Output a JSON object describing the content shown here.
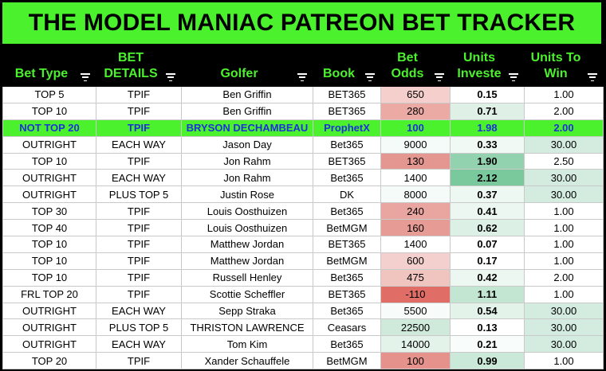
{
  "title": "THE MODEL MANIAC PATREON BET TRACKER",
  "colors": {
    "title_bg": "#4cf12e",
    "header_text": "#4cf12e",
    "highlight_row": "#4cf12e",
    "highlight_text": "#1c32d8"
  },
  "columns": [
    {
      "line1": "",
      "line2": "Bet Type"
    },
    {
      "line1": "BET",
      "line2": "DETAILS"
    },
    {
      "line1": "",
      "line2": "Golfer"
    },
    {
      "line1": "",
      "line2": "Book"
    },
    {
      "line1": "Bet",
      "line2": "Odds"
    },
    {
      "line1": "Units",
      "line2": "Investe"
    },
    {
      "line1": "Units To",
      "line2": "Win"
    }
  ],
  "rows": [
    {
      "bet_type": "TOP 5",
      "details": "TPIF",
      "golfer": "Ben Griffin",
      "book": "BET365",
      "odds": "650",
      "units": "0.15",
      "to_win": "1.00",
      "odds_bg": "#f4cfcc",
      "units_bg": "#ffffff",
      "win_bg": "#ffffff"
    },
    {
      "bet_type": "TOP 10",
      "details": "TPIF",
      "golfer": "Ben Griffin",
      "book": "BET365",
      "odds": "280",
      "units": "0.71",
      "to_win": "2.00",
      "odds_bg": "#ebaaa4",
      "units_bg": "#dff1e7",
      "win_bg": "#ffffff"
    },
    {
      "bet_type": "NOT TOP 20",
      "details": "TPIF",
      "golfer": "BRYSON DECHAMBEAU",
      "book": "ProphetX",
      "odds": "100",
      "units": "1.98",
      "to_win": "2.00",
      "odds_bg": "#e4928b",
      "units_bg": "#8fd0ac",
      "win_bg": "#ffffff",
      "highlight": true
    },
    {
      "bet_type": "OUTRIGHT",
      "details": "EACH WAY",
      "golfer": "Jason Day",
      "book": "Bet365",
      "odds": "9000",
      "units": "0.33",
      "to_win": "30.00",
      "odds_bg": "#f5fbf8",
      "units_bg": "#f1f9f4",
      "win_bg": "#d4ecdf"
    },
    {
      "bet_type": "TOP 10",
      "details": "TPIF",
      "golfer": "Jon Rahm",
      "book": "BET365",
      "odds": "130",
      "units": "1.90",
      "to_win": "2.50",
      "odds_bg": "#e39790",
      "units_bg": "#93d2af",
      "win_bg": "#ffffff"
    },
    {
      "bet_type": "OUTRIGHT",
      "details": "EACH WAY",
      "golfer": "Jon Rahm",
      "book": "Bet365",
      "odds": "1400",
      "units": "2.12",
      "to_win": "30.00",
      "odds_bg": "#ffffff",
      "units_bg": "#7ac99d",
      "win_bg": "#d4ecdf"
    },
    {
      "bet_type": "OUTRIGHT",
      "details": "PLUS TOP 5",
      "golfer": "Justin Rose",
      "book": "DK",
      "odds": "8000",
      "units": "0.37",
      "to_win": "30.00",
      "odds_bg": "#f5fbf8",
      "units_bg": "#eef8f2",
      "win_bg": "#d4ecdf"
    },
    {
      "bet_type": "TOP 30",
      "details": "TPIF",
      "golfer": "Louis Oosthuizen",
      "book": "Bet365",
      "odds": "240",
      "units": "0.41",
      "to_win": "1.00",
      "odds_bg": "#e9a59f",
      "units_bg": "#ebf7f0",
      "win_bg": "#ffffff"
    },
    {
      "bet_type": "TOP 40",
      "details": "TPIF",
      "golfer": "Louis Oosthuizen",
      "book": "BetMGM",
      "odds": "160",
      "units": "0.62",
      "to_win": "1.00",
      "odds_bg": "#e69c95",
      "units_bg": "#dcf0e5",
      "win_bg": "#ffffff"
    },
    {
      "bet_type": "TOP 10",
      "details": "TPIF",
      "golfer": "Matthew Jordan",
      "book": "BET365",
      "odds": "1400",
      "units": "0.07",
      "to_win": "1.00",
      "odds_bg": "#ffffff",
      "units_bg": "#ffffff",
      "win_bg": "#ffffff"
    },
    {
      "bet_type": "TOP 10",
      "details": "TPIF",
      "golfer": "Matthew Jordan",
      "book": "BetMGM",
      "odds": "600",
      "units": "0.17",
      "to_win": "1.00",
      "odds_bg": "#f3d0cd",
      "units_bg": "#ffffff",
      "win_bg": "#ffffff"
    },
    {
      "bet_type": "TOP 10",
      "details": "TPIF",
      "golfer": "Russell Henley",
      "book": "Bet365",
      "odds": "475",
      "units": "0.42",
      "to_win": "2.00",
      "odds_bg": "#f0c4bf",
      "units_bg": "#ebf7f0",
      "win_bg": "#ffffff"
    },
    {
      "bet_type": "FRL TOP 20",
      "details": "TPIF",
      "golfer": "Scottie Scheffler",
      "book": "BET365",
      "odds": "-110",
      "units": "1.11",
      "to_win": "1.00",
      "odds_bg": "#e06d66",
      "units_bg": "#c3e6d2",
      "win_bg": "#ffffff"
    },
    {
      "bet_type": "OUTRIGHT",
      "details": "EACH WAY",
      "golfer": "Sepp Straka",
      "book": "Bet365",
      "odds": "5500",
      "units": "0.54",
      "to_win": "30.00",
      "odds_bg": "#f7fbf9",
      "units_bg": "#e3f3ea",
      "win_bg": "#d4ecdf"
    },
    {
      "bet_type": "OUTRIGHT",
      "details": "PLUS TOP 5",
      "golfer": "THRISTON LAWRENCE",
      "book": "Ceasars",
      "odds": "22500",
      "units": "0.13",
      "to_win": "30.00",
      "odds_bg": "#cfe9da",
      "units_bg": "#ffffff",
      "win_bg": "#d4ecdf"
    },
    {
      "bet_type": "OUTRIGHT",
      "details": "EACH WAY",
      "golfer": "Tom Kim",
      "book": "Bet365",
      "odds": "14000",
      "units": "0.21",
      "to_win": "30.00",
      "odds_bg": "#e3f3ea",
      "units_bg": "#f8fcfa",
      "win_bg": "#d4ecdf"
    },
    {
      "bet_type": "TOP 20",
      "details": "TPIF",
      "golfer": "Xander Schauffele",
      "book": "BetMGM",
      "odds": "100",
      "units": "0.99",
      "to_win": "1.00",
      "odds_bg": "#e4928b",
      "units_bg": "#cbe9d8",
      "win_bg": "#ffffff"
    }
  ]
}
